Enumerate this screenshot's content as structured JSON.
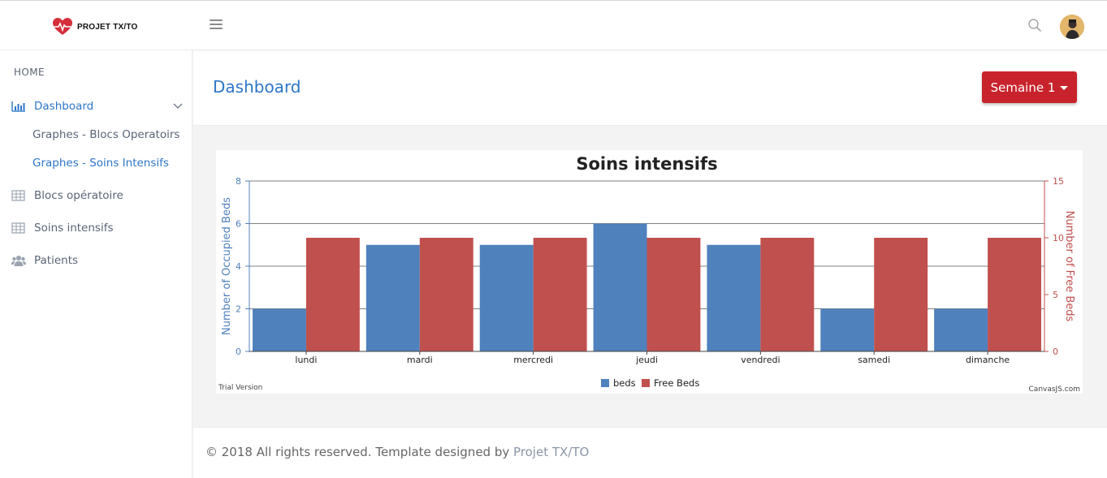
{
  "app": {
    "brand": "PROJET TX/TO"
  },
  "sidebar": {
    "heading": "HOME",
    "items": [
      {
        "label": "Dashboard",
        "icon": "bar-chart-icon"
      },
      {
        "label": "Blocs opératoire",
        "icon": "table-icon"
      },
      {
        "label": "Soins intensifs",
        "icon": "table-icon"
      },
      {
        "label": "Patients",
        "icon": "users-icon"
      }
    ],
    "subitems": [
      {
        "label": "Graphes - Blocs Operatoirs"
      },
      {
        "label": "Graphes - Soins Intensifs"
      }
    ]
  },
  "header": {
    "title": "Dashboard",
    "week_selector": "Semaine 1"
  },
  "colors": {
    "accent": "#2d76c8",
    "button_red": "#c8232c",
    "series_beds": "#4f81bc",
    "series_free": "#c0504e"
  },
  "chart_data": {
    "type": "bar",
    "title": "Soins intensifs",
    "categories": [
      "lundi",
      "mardi",
      "mercredi",
      "jeudi",
      "vendredi",
      "samedi",
      "dimanche"
    ],
    "series": [
      {
        "name": "beds",
        "axis": "left",
        "values": [
          2,
          5,
          5,
          6,
          5,
          2,
          2
        ]
      },
      {
        "name": "Free Beds",
        "axis": "right",
        "values": [
          10,
          10,
          10,
          10,
          10,
          10,
          10
        ]
      }
    ],
    "ylabel": "Number of Occupied Beds",
    "ylabel_right": "Number of Free Beds",
    "ylim": [
      0,
      8
    ],
    "ylim_right": [
      0,
      15
    ],
    "yticks": [
      0,
      2,
      4,
      6,
      8
    ],
    "yticks_right": [
      0,
      5,
      10,
      15
    ],
    "grid": true,
    "legend": "bottom-center",
    "watermark_left": "Trial Version",
    "watermark_right": "CanvasJS.com"
  },
  "footer": {
    "text": "© 2018 All rights reserved. Template designed by ",
    "link": "Projet TX/TO"
  }
}
